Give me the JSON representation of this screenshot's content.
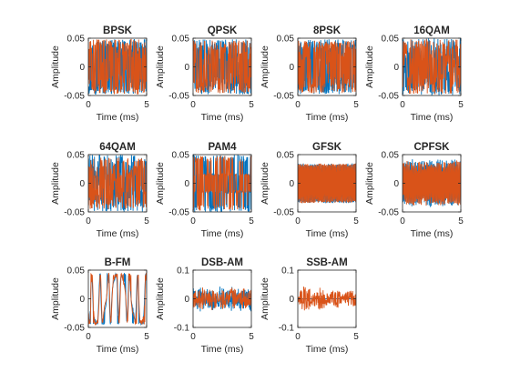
{
  "figure": {
    "background": "#ffffff",
    "axes_color": "#262626",
    "series_colors": [
      "#0072BD",
      "#D95319"
    ]
  },
  "chart_data": [
    {
      "type": "line",
      "title": "BPSK",
      "xlabel": "Time (ms)",
      "ylabel": "Amplitude",
      "xlim": [
        0,
        5
      ],
      "ylim": [
        -0.05,
        0.05
      ],
      "xticks": [
        0,
        5
      ],
      "yticks": [
        -0.05,
        0,
        0.05
      ],
      "ytick_labels": [
        "-0.05",
        "0",
        "0.05"
      ],
      "pattern": "psk",
      "series": [
        {
          "amplitude": 0.048
        },
        {
          "amplitude": 0.048
        }
      ]
    },
    {
      "type": "line",
      "title": "QPSK",
      "xlabel": "Time (ms)",
      "ylabel": "Amplitude",
      "xlim": [
        0,
        5
      ],
      "ylim": [
        -0.05,
        0.05
      ],
      "xticks": [
        0,
        5
      ],
      "yticks": [
        -0.05,
        0,
        0.05
      ],
      "ytick_labels": [
        "-0.05",
        "0",
        "0.05"
      ],
      "pattern": "psk",
      "series": [
        {
          "amplitude": 0.048
        },
        {
          "amplitude": 0.046
        }
      ]
    },
    {
      "type": "line",
      "title": "8PSK",
      "xlabel": "Time (ms)",
      "ylabel": "Amplitude",
      "xlim": [
        0,
        5
      ],
      "ylim": [
        -0.05,
        0.05
      ],
      "xticks": [
        0,
        5
      ],
      "yticks": [
        -0.05,
        0,
        0.05
      ],
      "ytick_labels": [
        "-0.05",
        "0",
        "0.05"
      ],
      "pattern": "psk",
      "series": [
        {
          "amplitude": 0.048
        },
        {
          "amplitude": 0.046
        }
      ]
    },
    {
      "type": "line",
      "title": "16QAM",
      "xlabel": "Time (ms)",
      "ylabel": "Amplitude",
      "xlim": [
        0,
        5
      ],
      "ylim": [
        -0.05,
        0.05
      ],
      "xticks": [
        0,
        5
      ],
      "yticks": [
        -0.05,
        0,
        0.05
      ],
      "ytick_labels": [
        "-0.05",
        "0",
        "0.05"
      ],
      "pattern": "qam",
      "series": [
        {
          "amplitude": 0.05
        },
        {
          "amplitude": 0.048
        }
      ]
    },
    {
      "type": "line",
      "title": "64QAM",
      "xlabel": "Time (ms)",
      "ylabel": "Amplitude",
      "xlim": [
        0,
        5
      ],
      "ylim": [
        -0.05,
        0.05
      ],
      "xticks": [
        0,
        5
      ],
      "yticks": [
        -0.05,
        0,
        0.05
      ],
      "ytick_labels": [
        "-0.05",
        "0",
        "0.05"
      ],
      "pattern": "qam",
      "series": [
        {
          "amplitude": 0.05
        },
        {
          "amplitude": 0.045
        }
      ]
    },
    {
      "type": "line",
      "title": "PAM4",
      "xlabel": "Time (ms)",
      "ylabel": "Amplitude",
      "xlim": [
        0,
        5
      ],
      "ylim": [
        -0.05,
        0.05
      ],
      "xticks": [
        0,
        5
      ],
      "yticks": [
        -0.05,
        0,
        0.05
      ],
      "ytick_labels": [
        "-0.05",
        "0",
        "0.05"
      ],
      "pattern": "pam",
      "series": [
        {
          "amplitude": 0.05
        },
        {
          "amplitude": 0.048
        }
      ]
    },
    {
      "type": "line",
      "title": "GFSK",
      "xlabel": "Time (ms)",
      "ylabel": "Amplitude",
      "xlim": [
        0,
        5
      ],
      "ylim": [
        -0.05,
        0.05
      ],
      "xticks": [
        0,
        5
      ],
      "yticks": [
        -0.05,
        0,
        0.05
      ],
      "ytick_labels": [
        "-0.05",
        "0",
        "0.05"
      ],
      "pattern": "fsk",
      "series": [
        {
          "amplitude": 0.035
        },
        {
          "amplitude": 0.035
        }
      ]
    },
    {
      "type": "line",
      "title": "CPFSK",
      "xlabel": "Time (ms)",
      "ylabel": "Amplitude",
      "xlim": [
        0,
        5
      ],
      "ylim": [
        -0.05,
        0.05
      ],
      "xticks": [
        0,
        5
      ],
      "yticks": [
        -0.05,
        0,
        0.05
      ],
      "ytick_labels": [
        "-0.05",
        "0",
        "0.05"
      ],
      "pattern": "cpfsk",
      "series": [
        {
          "amplitude": 0.042
        },
        {
          "amplitude": 0.04
        }
      ]
    },
    {
      "type": "line",
      "title": "B-FM",
      "xlabel": "Time (ms)",
      "ylabel": "Amplitude",
      "xlim": [
        0,
        5
      ],
      "ylim": [
        -0.05,
        0.05
      ],
      "xticks": [
        0,
        5
      ],
      "yticks": [
        -0.05,
        0,
        0.05
      ],
      "ytick_labels": [
        "-0.05",
        "0",
        "0.05"
      ],
      "pattern": "fm",
      "series": [
        {
          "amplitude": 0.045
        },
        {
          "amplitude": 0.045
        }
      ]
    },
    {
      "type": "line",
      "title": "DSB-AM",
      "xlabel": "Time (ms)",
      "ylabel": "Amplitude",
      "xlim": [
        0,
        5
      ],
      "ylim": [
        -0.1,
        0.1
      ],
      "xticks": [
        0,
        5
      ],
      "yticks": [
        -0.1,
        0,
        0.1
      ],
      "ytick_labels": [
        "-0.1",
        "0",
        "0.1"
      ],
      "pattern": "am",
      "series": [
        {
          "amplitude": 0.045
        },
        {
          "amplitude": 0.04
        }
      ]
    },
    {
      "type": "line",
      "title": "SSB-AM",
      "xlabel": "Time (ms)",
      "ylabel": "Amplitude",
      "xlim": [
        0,
        5
      ],
      "ylim": [
        -0.1,
        0.1
      ],
      "xticks": [
        0,
        5
      ],
      "yticks": [
        -0.1,
        0,
        0.1
      ],
      "ytick_labels": [
        "-0.1",
        "0",
        "0.1"
      ],
      "pattern": "ssb",
      "series": [
        {
          "amplitude": 0.0
        },
        {
          "amplitude": 0.045
        }
      ]
    }
  ]
}
